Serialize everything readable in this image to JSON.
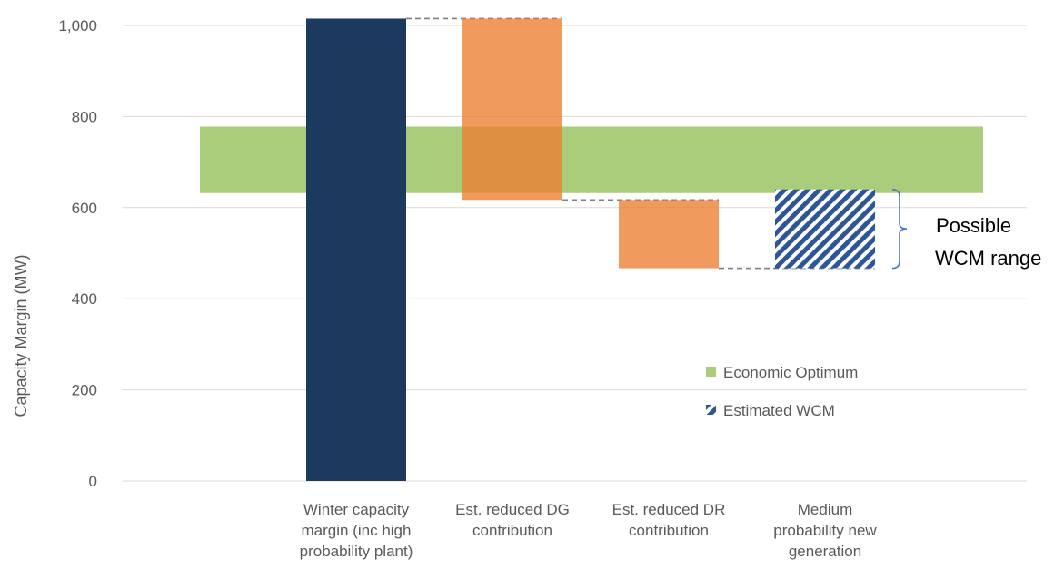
{
  "chart_data": {
    "type": "bar",
    "subtype": "waterfall",
    "title": "",
    "ylabel": "Capacity Margin (MW)",
    "ylim": [
      0,
      1000
    ],
    "yticks": [
      0,
      200,
      400,
      600,
      800,
      1000
    ],
    "ytick_labels": [
      "0",
      "200",
      "400",
      "600",
      "800",
      "1,000"
    ],
    "grid": true,
    "categories": [
      [
        "Winter capacity",
        "margin (inc high",
        "probability plant)"
      ],
      [
        "Est. reduced DG",
        "contribution"
      ],
      [
        "Est. reduced DR",
        "contribution"
      ],
      [
        "Medium",
        "probability new",
        "generation"
      ]
    ],
    "bars": [
      {
        "category": "Winter capacity margin (inc high probability plant)",
        "bottom": 0,
        "top": 1015,
        "style": "solid",
        "color": "#1b3a5e"
      },
      {
        "category": "Est. reduced DG contribution",
        "bottom": 617,
        "top": 1015,
        "style": "solid",
        "color": "#ed7d31"
      },
      {
        "category": "Est. reduced DR contribution",
        "bottom": 467,
        "top": 617,
        "style": "solid",
        "color": "#ed7d31"
      },
      {
        "category": "Medium probability new generation",
        "bottom": 467,
        "top": 640,
        "style": "hatched",
        "color": "#2e5597"
      }
    ],
    "band": {
      "name": "Economic Optimum",
      "from": 632,
      "to": 778,
      "color": "#a9cd7b"
    },
    "legend": {
      "position": "inside-bottom-right",
      "items": [
        {
          "label": "Economic Optimum",
          "swatch": "solid",
          "color": "#a9cd7b"
        },
        {
          "label": "Estimated WCM",
          "swatch": "hatched",
          "color": "#2e5597"
        }
      ]
    },
    "annotation": {
      "lines": [
        "Possible",
        "WCM range"
      ],
      "from": 467,
      "to": 640
    }
  }
}
